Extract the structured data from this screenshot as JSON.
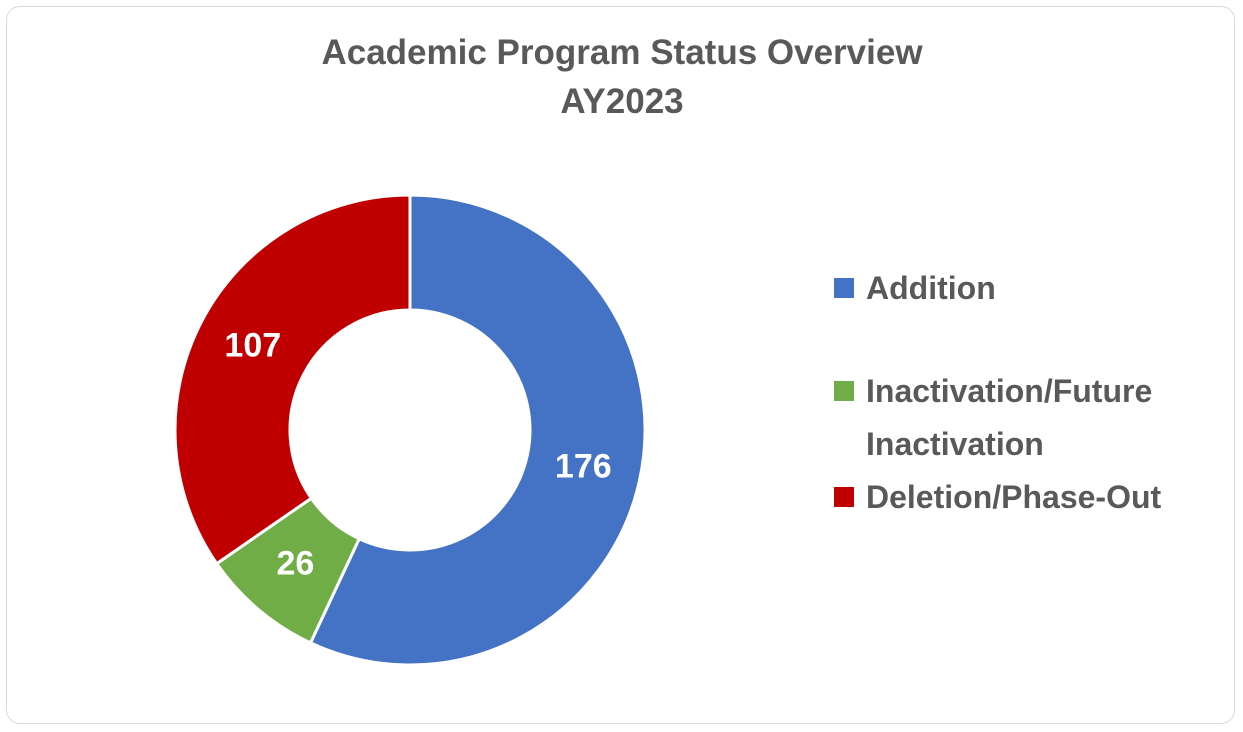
{
  "chart_data": {
    "type": "donut",
    "title": [
      "Academic Program Status Overview",
      "AY2023"
    ],
    "categories": [
      "Addition",
      "Inactivation/Future Inactivation",
      "Deletion/Phase-Out"
    ],
    "values": [
      176,
      26,
      107
    ],
    "colors": [
      "#4472c4",
      "#70ad47",
      "#c00000"
    ],
    "legend": "right"
  }
}
